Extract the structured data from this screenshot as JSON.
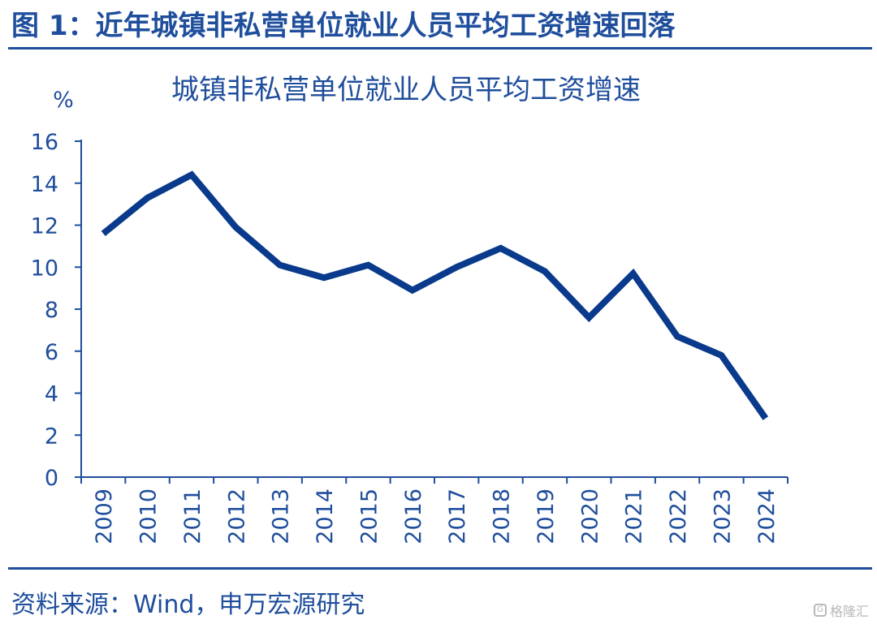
{
  "figure": {
    "title": "图 1：近年城镇非私营单位就业人员平均工资增速回落",
    "source": "资料来源：Wind，申万宏源研究",
    "watermark": "格隆汇"
  },
  "colors": {
    "accent": "#1f4e9c",
    "series": "#0a3a8c"
  },
  "chart_data": {
    "type": "line",
    "title": "城镇非私营单位就业人员平均工资增速",
    "xlabel": "",
    "ylabel": "%",
    "ylim": [
      0,
      16
    ],
    "yticks": [
      0,
      2,
      4,
      6,
      8,
      10,
      12,
      14,
      16
    ],
    "grid": false,
    "categories": [
      "2009",
      "2010",
      "2011",
      "2012",
      "2013",
      "2014",
      "2015",
      "2016",
      "2017",
      "2018",
      "2019",
      "2020",
      "2021",
      "2022",
      "2023",
      "2024"
    ],
    "series": [
      {
        "name": "",
        "values": [
          11.6,
          13.3,
          14.4,
          11.9,
          10.1,
          9.5,
          10.1,
          8.9,
          10.0,
          10.9,
          9.8,
          7.6,
          9.7,
          6.7,
          5.8,
          2.8
        ]
      }
    ]
  }
}
